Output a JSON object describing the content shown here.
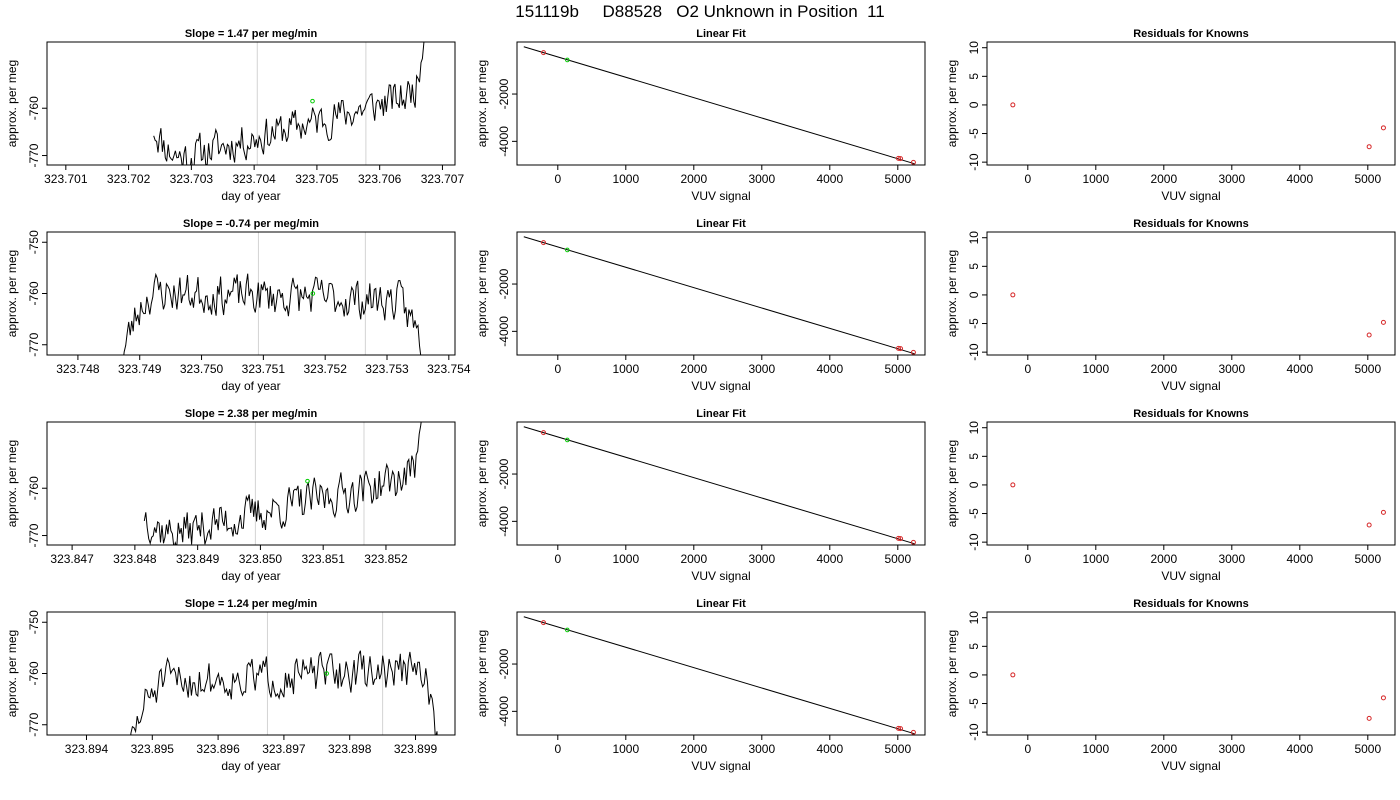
{
  "figure": {
    "title": "151119b     D88528   O2 Unknown in Position  11"
  },
  "colors": {
    "line": "#000000",
    "vline": "#d3d3d3",
    "green": "#00cc00",
    "red": "#d62728"
  },
  "chart_data": [
    {
      "type": "line",
      "row": 1,
      "col": 1,
      "title": "Slope =  1.47  per meg/min",
      "xlabel": "day of year",
      "ylabel": "approx. per meg",
      "xlim": [
        323.7007,
        323.7072
      ],
      "ylim": [
        -772,
        -746
      ],
      "xticks": [
        "323.701",
        "323.702",
        "323.703",
        "323.704",
        "323.705",
        "323.706",
        "323.707"
      ],
      "xtick_values": [
        323.701,
        323.702,
        323.703,
        323.704,
        323.705,
        323.706,
        323.707
      ],
      "yticks": [
        "-770",
        "-760"
      ],
      "ytick_values": [
        -770,
        -760
      ],
      "vlines": [
        323.70405,
        323.70578
      ],
      "green_point": [
        323.70493,
        -758.5
      ],
      "trace": {
        "x_start": 323.7024,
        "x_end": 323.70675,
        "n": 190,
        "base_start": -772,
        "base_end": -756.5,
        "pre_rise": 8,
        "post_rise": 5,
        "end_jump": 16,
        "noise": 3.5,
        "seed": 11
      }
    },
    {
      "type": "scatter",
      "row": 1,
      "col": 2,
      "title": "Linear Fit",
      "xlabel": "VUV signal",
      "ylabel": "approx. per meg",
      "xlim": [
        -600,
        5400
      ],
      "ylim": [
        -5000,
        200
      ],
      "xticks": [
        "0",
        "1000",
        "2000",
        "3000",
        "4000",
        "5000"
      ],
      "xtick_values": [
        0,
        1000,
        2000,
        3000,
        4000,
        5000
      ],
      "yticks": [
        "-2000",
        "-4000"
      ],
      "ytick_values": [
        -2000,
        -4000
      ],
      "fit_line": [
        [
          -500,
          0
        ],
        [
          5250,
          -4950
        ]
      ],
      "red_points": [
        [
          -210,
          -250
        ],
        [
          5010,
          -4720
        ],
        [
          5040,
          -4730
        ],
        [
          5230,
          -4890
        ]
      ],
      "green_points": [
        [
          140,
          -560
        ]
      ]
    },
    {
      "type": "scatter",
      "row": 1,
      "col": 3,
      "title": "Residuals for Knowns",
      "xlabel": "VUV signal",
      "ylabel": "approx. per meg",
      "xlim": [
        -600,
        5400
      ],
      "ylim": [
        -10.5,
        11
      ],
      "xticks": [
        "0",
        "1000",
        "2000",
        "3000",
        "4000",
        "5000"
      ],
      "xtick_values": [
        0,
        1000,
        2000,
        3000,
        4000,
        5000
      ],
      "yticks": [
        "-10",
        "-5",
        "0",
        "5",
        "10"
      ],
      "ytick_values": [
        -10,
        -5,
        0,
        5,
        10
      ],
      "red_points": [
        [
          -220,
          0
        ],
        [
          5020,
          -7.3
        ],
        [
          5230,
          -4
        ]
      ]
    },
    {
      "type": "line",
      "row": 2,
      "col": 1,
      "title": "Slope =  -0.74  per meg/min",
      "xlabel": "day of year",
      "ylabel": "approx. per meg",
      "xlim": [
        323.7475,
        323.7541
      ],
      "ylim": [
        -772,
        -748
      ],
      "xticks": [
        "323.748",
        "323.749",
        "323.750",
        "323.751",
        "323.752",
        "323.753",
        "323.754"
      ],
      "xtick_values": [
        323.748,
        323.749,
        323.75,
        323.751,
        323.752,
        323.753,
        323.754
      ],
      "yticks": [
        "-770",
        "-760",
        "-750"
      ],
      "ytick_values": [
        -770,
        -760,
        -750
      ],
      "vlines": [
        323.75092,
        323.75265
      ],
      "green_point": [
        323.7518,
        -760
      ],
      "trace": {
        "x_start": 323.7487,
        "x_end": 323.75355,
        "n": 200,
        "base_start": -759.5,
        "base_end": -761.5,
        "pre_rise": -14,
        "post_rise": -8,
        "end_jump": 0,
        "noise": 3.5,
        "seed": 23
      }
    },
    {
      "type": "scatter",
      "row": 2,
      "col": 2,
      "title": "Linear Fit",
      "xlabel": "VUV signal",
      "ylabel": "approx. per meg",
      "xlim": [
        -600,
        5400
      ],
      "ylim": [
        -5000,
        200
      ],
      "xticks": [
        "0",
        "1000",
        "2000",
        "3000",
        "4000",
        "5000"
      ],
      "xtick_values": [
        0,
        1000,
        2000,
        3000,
        4000,
        5000
      ],
      "yticks": [
        "-2000",
        "-4000"
      ],
      "ytick_values": [
        -2000,
        -4000
      ],
      "fit_line": [
        [
          -500,
          0
        ],
        [
          5250,
          -4950
        ]
      ],
      "red_points": [
        [
          -210,
          -250
        ],
        [
          5010,
          -4720
        ],
        [
          5040,
          -4730
        ],
        [
          5230,
          -4890
        ]
      ],
      "green_points": [
        [
          140,
          -560
        ]
      ]
    },
    {
      "type": "scatter",
      "row": 2,
      "col": 3,
      "title": "Residuals for Knowns",
      "xlabel": "VUV signal",
      "ylabel": "approx. per meg",
      "xlim": [
        -600,
        5400
      ],
      "ylim": [
        -10.5,
        11
      ],
      "xticks": [
        "0",
        "1000",
        "2000",
        "3000",
        "4000",
        "5000"
      ],
      "xtick_values": [
        0,
        1000,
        2000,
        3000,
        4000,
        5000
      ],
      "yticks": [
        "-10",
        "-5",
        "0",
        "5",
        "10"
      ],
      "ytick_values": [
        -10,
        -5,
        0,
        5,
        10
      ],
      "red_points": [
        [
          -220,
          0
        ],
        [
          5020,
          -7
        ],
        [
          5230,
          -4.8
        ]
      ]
    },
    {
      "type": "line",
      "row": 3,
      "col": 1,
      "title": "Slope =  2.38  per meg/min",
      "xlabel": "day of year",
      "ylabel": "approx. per meg",
      "xlim": [
        323.8466,
        323.8531
      ],
      "ylim": [
        -772,
        -746
      ],
      "xticks": [
        "323.847",
        "323.848",
        "323.849",
        "323.850",
        "323.851",
        "323.852"
      ],
      "xtick_values": [
        323.847,
        323.848,
        323.849,
        323.85,
        323.851,
        323.852
      ],
      "yticks": [
        "-770",
        "-760"
      ],
      "ytick_values": [
        -770,
        -760
      ],
      "vlines": [
        323.84992,
        323.85165
      ],
      "green_point": [
        323.85075,
        -758.5
      ],
      "trace": {
        "x_start": 323.84815,
        "x_end": 323.8526,
        "n": 190,
        "base_start": -771,
        "base_end": -757,
        "pre_rise": 6,
        "post_rise": 4,
        "end_jump": 16,
        "noise": 3.8,
        "seed": 37
      }
    },
    {
      "type": "scatter",
      "row": 3,
      "col": 2,
      "title": "Linear Fit",
      "xlabel": "VUV signal",
      "ylabel": "approx. per meg",
      "xlim": [
        -600,
        5400
      ],
      "ylim": [
        -5000,
        200
      ],
      "xticks": [
        "0",
        "1000",
        "2000",
        "3000",
        "4000",
        "5000"
      ],
      "xtick_values": [
        0,
        1000,
        2000,
        3000,
        4000,
        5000
      ],
      "yticks": [
        "-2000",
        "-4000"
      ],
      "ytick_values": [
        -2000,
        -4000
      ],
      "fit_line": [
        [
          -500,
          0
        ],
        [
          5250,
          -4950
        ]
      ],
      "red_points": [
        [
          -210,
          -250
        ],
        [
          5010,
          -4720
        ],
        [
          5040,
          -4730
        ],
        [
          5230,
          -4890
        ]
      ],
      "green_points": [
        [
          140,
          -560
        ]
      ]
    },
    {
      "type": "scatter",
      "row": 3,
      "col": 3,
      "title": "Residuals for Knowns",
      "xlabel": "VUV signal",
      "ylabel": "approx. per meg",
      "xlim": [
        -600,
        5400
      ],
      "ylim": [
        -10.5,
        11
      ],
      "xticks": [
        "0",
        "1000",
        "2000",
        "3000",
        "4000",
        "5000"
      ],
      "xtick_values": [
        0,
        1000,
        2000,
        3000,
        4000,
        5000
      ],
      "yticks": [
        "-10",
        "-5",
        "0",
        "5",
        "10"
      ],
      "ytick_values": [
        -10,
        -5,
        0,
        5,
        10
      ],
      "red_points": [
        [
          -220,
          0
        ],
        [
          5020,
          -7
        ],
        [
          5230,
          -4.8
        ]
      ]
    },
    {
      "type": "line",
      "row": 4,
      "col": 1,
      "title": "Slope =  1.24  per meg/min",
      "xlabel": "day of year",
      "ylabel": "approx. per meg",
      "xlim": [
        323.8934,
        323.8996
      ],
      "ylim": [
        -772,
        -748
      ],
      "xticks": [
        "323.894",
        "323.895",
        "323.896",
        "323.897",
        "323.898",
        "323.899"
      ],
      "xtick_values": [
        323.894,
        323.895,
        323.896,
        323.897,
        323.898,
        323.899
      ],
      "yticks": [
        "-770",
        "-760",
        "-750"
      ],
      "ytick_values": [
        -770,
        -760,
        -750
      ],
      "vlines": [
        323.89675,
        323.8985
      ],
      "green_point": [
        323.89765,
        -760
      ],
      "trace": {
        "x_start": 323.89465,
        "x_end": 323.89935,
        "n": 195,
        "base_start": -762,
        "base_end": -759,
        "pre_rise": -13,
        "post_rise": -8,
        "end_jump": -10,
        "noise": 3.5,
        "seed": 51
      }
    },
    {
      "type": "scatter",
      "row": 4,
      "col": 2,
      "title": "Linear Fit",
      "xlabel": "VUV signal",
      "ylabel": "approx. per meg",
      "xlim": [
        -600,
        5400
      ],
      "ylim": [
        -5000,
        200
      ],
      "xticks": [
        "0",
        "1000",
        "2000",
        "3000",
        "4000",
        "5000"
      ],
      "xtick_values": [
        0,
        1000,
        2000,
        3000,
        4000,
        5000
      ],
      "yticks": [
        "-2000",
        "-4000"
      ],
      "ytick_values": [
        -2000,
        -4000
      ],
      "fit_line": [
        [
          -500,
          0
        ],
        [
          5250,
          -4950
        ]
      ],
      "red_points": [
        [
          -210,
          -250
        ],
        [
          5010,
          -4720
        ],
        [
          5040,
          -4730
        ],
        [
          5230,
          -4890
        ]
      ],
      "green_points": [
        [
          140,
          -560
        ]
      ]
    },
    {
      "type": "scatter",
      "row": 4,
      "col": 3,
      "title": "Residuals for Knowns",
      "xlabel": "VUV signal",
      "ylabel": "approx. per meg",
      "xlim": [
        -600,
        5400
      ],
      "ylim": [
        -10.5,
        11
      ],
      "xticks": [
        "0",
        "1000",
        "2000",
        "3000",
        "4000",
        "5000"
      ],
      "xtick_values": [
        0,
        1000,
        2000,
        3000,
        4000,
        5000
      ],
      "yticks": [
        "-10",
        "-5",
        "0",
        "5",
        "10"
      ],
      "ytick_values": [
        -10,
        -5,
        0,
        5,
        10
      ],
      "red_points": [
        [
          -220,
          0
        ],
        [
          5020,
          -7.6
        ],
        [
          5230,
          -4
        ]
      ]
    }
  ]
}
